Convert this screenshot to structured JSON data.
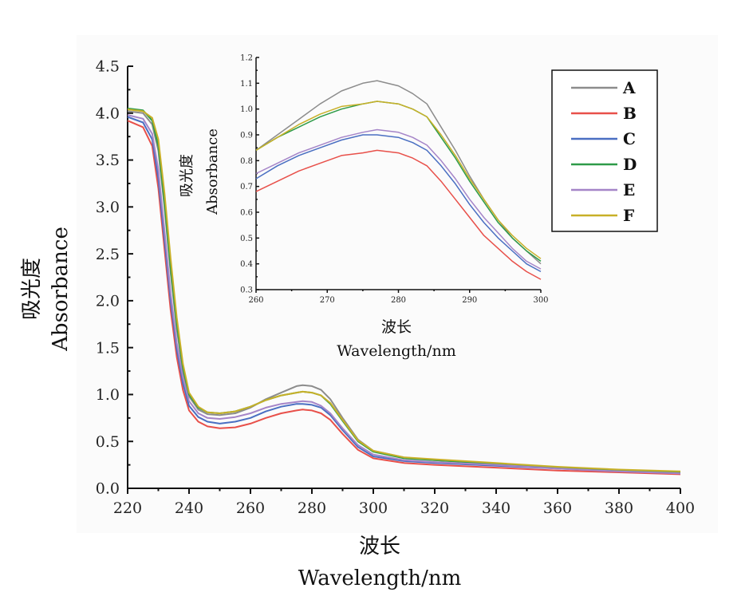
{
  "chart_data": [
    {
      "type": "line",
      "xlabel_cn": "波长",
      "xlabel": "Wavelength/nm",
      "ylabel_cn": "吸光度",
      "ylabel": "Absorbance",
      "xlim": [
        220,
        400
      ],
      "ylim": [
        0,
        4.5
      ],
      "xticks": [
        "220",
        "240",
        "260",
        "280",
        "300",
        "320",
        "340",
        "360",
        "380",
        "400"
      ],
      "yticks": [
        "0.0",
        "0.5",
        "1.0",
        "1.5",
        "2.0",
        "2.5",
        "3.0",
        "3.5",
        "4.0",
        "4.5"
      ],
      "x": [
        220,
        225,
        228,
        230,
        232,
        234,
        236,
        238,
        240,
        243,
        246,
        250,
        255,
        260,
        265,
        270,
        275,
        277,
        280,
        283,
        286,
        290,
        295,
        300,
        310,
        320,
        340,
        360,
        380,
        400
      ],
      "series": [
        {
          "name": "A",
          "color": "#8c8c8c",
          "values": [
            4.02,
            4.0,
            3.88,
            3.6,
            3.0,
            2.3,
            1.7,
            1.25,
            0.98,
            0.84,
            0.79,
            0.78,
            0.8,
            0.86,
            0.95,
            1.02,
            1.09,
            1.1,
            1.09,
            1.05,
            0.95,
            0.75,
            0.52,
            0.4,
            0.33,
            0.3,
            0.26,
            0.22,
            0.19,
            0.17
          ]
        },
        {
          "name": "B",
          "color": "#e8504a",
          "values": [
            3.92,
            3.85,
            3.65,
            3.2,
            2.55,
            1.9,
            1.4,
            1.05,
            0.83,
            0.71,
            0.66,
            0.64,
            0.65,
            0.69,
            0.75,
            0.8,
            0.83,
            0.84,
            0.83,
            0.8,
            0.73,
            0.58,
            0.41,
            0.32,
            0.27,
            0.25,
            0.22,
            0.19,
            0.17,
            0.15
          ]
        },
        {
          "name": "C",
          "color": "#4a6fc2",
          "values": [
            3.96,
            3.9,
            3.72,
            3.3,
            2.65,
            2.0,
            1.48,
            1.12,
            0.88,
            0.76,
            0.71,
            0.69,
            0.71,
            0.75,
            0.82,
            0.87,
            0.9,
            0.9,
            0.89,
            0.86,
            0.78,
            0.62,
            0.44,
            0.34,
            0.29,
            0.27,
            0.24,
            0.21,
            0.18,
            0.16
          ]
        },
        {
          "name": "D",
          "color": "#2e9b48",
          "values": [
            4.05,
            4.03,
            3.92,
            3.65,
            3.05,
            2.35,
            1.75,
            1.28,
            1.0,
            0.86,
            0.81,
            0.8,
            0.82,
            0.87,
            0.94,
            0.99,
            1.02,
            1.03,
            1.02,
            0.99,
            0.9,
            0.72,
            0.5,
            0.39,
            0.32,
            0.3,
            0.26,
            0.22,
            0.19,
            0.17
          ]
        },
        {
          "name": "E",
          "color": "#a585c8",
          "values": [
            3.98,
            3.94,
            3.78,
            3.4,
            2.75,
            2.08,
            1.55,
            1.18,
            0.93,
            0.8,
            0.75,
            0.74,
            0.76,
            0.8,
            0.86,
            0.9,
            0.92,
            0.93,
            0.92,
            0.88,
            0.8,
            0.64,
            0.46,
            0.36,
            0.3,
            0.28,
            0.25,
            0.21,
            0.18,
            0.16
          ]
        },
        {
          "name": "F",
          "color": "#c8b028",
          "values": [
            4.04,
            4.02,
            3.95,
            3.72,
            3.15,
            2.45,
            1.82,
            1.33,
            1.02,
            0.87,
            0.81,
            0.8,
            0.82,
            0.87,
            0.94,
            0.99,
            1.02,
            1.03,
            1.02,
            0.99,
            0.91,
            0.73,
            0.51,
            0.4,
            0.33,
            0.31,
            0.27,
            0.23,
            0.2,
            0.18
          ]
        }
      ],
      "legend_position": "top-right",
      "grid": false
    },
    {
      "type": "line",
      "role": "inset",
      "xlabel_cn": "波长",
      "xlabel": "Wavelength/nm",
      "ylabel_cn": "吸光度",
      "ylabel": "Absorbance",
      "xlim": [
        260,
        300
      ],
      "ylim": [
        0.3,
        1.2
      ],
      "xticks": [
        "260",
        "270",
        "280",
        "290",
        "300"
      ],
      "yticks": [
        "0.3",
        "0.4",
        "0.5",
        "0.6",
        "0.7",
        "0.8",
        "0.9",
        "1.0",
        "1.1",
        "1.2"
      ],
      "x": [
        260,
        263,
        266,
        269,
        272,
        275,
        277,
        280,
        282,
        284,
        286,
        288,
        290,
        292,
        294,
        296,
        298,
        300
      ],
      "series": [
        {
          "name": "A",
          "color": "#8c8c8c",
          "values": [
            0.84,
            0.9,
            0.96,
            1.02,
            1.07,
            1.1,
            1.11,
            1.09,
            1.06,
            1.02,
            0.93,
            0.84,
            0.74,
            0.65,
            0.57,
            0.5,
            0.45,
            0.4
          ]
        },
        {
          "name": "B",
          "color": "#e8504a",
          "values": [
            0.68,
            0.72,
            0.76,
            0.79,
            0.82,
            0.83,
            0.84,
            0.83,
            0.81,
            0.78,
            0.72,
            0.65,
            0.58,
            0.51,
            0.46,
            0.41,
            0.37,
            0.34
          ]
        },
        {
          "name": "C",
          "color": "#4a6fc2",
          "values": [
            0.73,
            0.78,
            0.82,
            0.85,
            0.88,
            0.9,
            0.9,
            0.89,
            0.87,
            0.84,
            0.78,
            0.71,
            0.63,
            0.56,
            0.5,
            0.45,
            0.4,
            0.37
          ]
        },
        {
          "name": "D",
          "color": "#2e9b48",
          "values": [
            0.84,
            0.89,
            0.93,
            0.97,
            1.0,
            1.02,
            1.03,
            1.02,
            1.0,
            0.97,
            0.89,
            0.81,
            0.72,
            0.64,
            0.56,
            0.5,
            0.45,
            0.41
          ]
        },
        {
          "name": "E",
          "color": "#a585c8",
          "values": [
            0.75,
            0.79,
            0.83,
            0.86,
            0.89,
            0.91,
            0.92,
            0.91,
            0.89,
            0.86,
            0.8,
            0.73,
            0.65,
            0.58,
            0.52,
            0.46,
            0.41,
            0.38
          ]
        },
        {
          "name": "F",
          "color": "#c8b028",
          "values": [
            0.84,
            0.89,
            0.94,
            0.98,
            1.01,
            1.02,
            1.03,
            1.02,
            1.0,
            0.97,
            0.9,
            0.82,
            0.73,
            0.65,
            0.57,
            0.51,
            0.46,
            0.42
          ]
        }
      ],
      "grid": false
    }
  ]
}
